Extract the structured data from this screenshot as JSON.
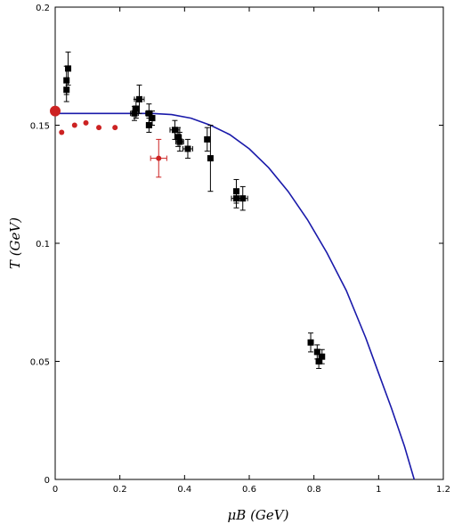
{
  "chart_data": {
    "type": "scatter",
    "title": "",
    "xlabel": "μB (GeV)",
    "ylabel": "T (GeV)",
    "xlim": [
      0,
      1.2
    ],
    "ylim": [
      0,
      0.2
    ],
    "x_ticks": [
      "0",
      "0.2",
      "0.4",
      "0.6",
      "0.8",
      "1",
      "1.2"
    ],
    "y_ticks": [
      "0",
      "0.05",
      "0.1",
      "0.15",
      "0.2"
    ],
    "grid": false,
    "series": [
      {
        "color": "#000000",
        "marker": "square",
        "points": [
          {
            "x": 0.035,
            "y": 0.169,
            "yerr": 0.006,
            "xerr": 0
          },
          {
            "x": 0.04,
            "y": 0.174,
            "yerr": 0.007,
            "xerr": 0
          },
          {
            "x": 0.035,
            "y": 0.165,
            "yerr": 0.005,
            "xerr": 0
          },
          {
            "x": 0.245,
            "y": 0.155,
            "yerr": 0.003,
            "xerr": 0.012
          },
          {
            "x": 0.25,
            "y": 0.157,
            "yerr": 0.004,
            "xerr": 0.01
          },
          {
            "x": 0.26,
            "y": 0.161,
            "yerr": 0.006,
            "xerr": 0.015
          },
          {
            "x": 0.29,
            "y": 0.155,
            "yerr": 0.004,
            "xerr": 0.01
          },
          {
            "x": 0.29,
            "y": 0.15,
            "yerr": 0.003,
            "xerr": 0.008
          },
          {
            "x": 0.3,
            "y": 0.153,
            "yerr": 0.003,
            "xerr": 0.008
          },
          {
            "x": 0.37,
            "y": 0.148,
            "yerr": 0.004,
            "xerr": 0.015
          },
          {
            "x": 0.38,
            "y": 0.145,
            "yerr": 0.004,
            "xerr": 0.01
          },
          {
            "x": 0.385,
            "y": 0.143,
            "yerr": 0.004,
            "xerr": 0.012
          },
          {
            "x": 0.41,
            "y": 0.14,
            "yerr": 0.004,
            "xerr": 0.015
          },
          {
            "x": 0.47,
            "y": 0.144,
            "yerr": 0.005,
            "xerr": 0.008
          },
          {
            "x": 0.48,
            "y": 0.136,
            "yerr": 0.014,
            "xerr": 0
          },
          {
            "x": 0.56,
            "y": 0.122,
            "yerr": 0.005,
            "xerr": 0.008
          },
          {
            "x": 0.56,
            "y": 0.119,
            "yerr": 0.004,
            "xerr": 0.015
          },
          {
            "x": 0.58,
            "y": 0.119,
            "yerr": 0.005,
            "xerr": 0.015
          },
          {
            "x": 0.79,
            "y": 0.058,
            "yerr": 0.004,
            "xerr": 0.005
          },
          {
            "x": 0.81,
            "y": 0.054,
            "yerr": 0.003,
            "xerr": 0.005
          },
          {
            "x": 0.815,
            "y": 0.05,
            "yerr": 0.003,
            "xerr": 0.008
          },
          {
            "x": 0.825,
            "y": 0.052,
            "yerr": 0.003,
            "xerr": 0.005
          }
        ]
      },
      {
        "color": "#cc2222",
        "marker": "circle",
        "points": [
          {
            "x": 0.0,
            "y": 0.156,
            "yerr": 0,
            "xerr": 0,
            "size": "large"
          },
          {
            "x": 0.02,
            "y": 0.147,
            "yerr": 0,
            "xerr": 0
          },
          {
            "x": 0.06,
            "y": 0.15,
            "yerr": 0,
            "xerr": 0
          },
          {
            "x": 0.095,
            "y": 0.151,
            "yerr": 0,
            "xerr": 0
          },
          {
            "x": 0.135,
            "y": 0.149,
            "yerr": 0,
            "xerr": 0
          },
          {
            "x": 0.185,
            "y": 0.149,
            "yerr": 0,
            "xerr": 0
          },
          {
            "x": 0.32,
            "y": 0.136,
            "yerr": 0.008,
            "xerr": 0.025
          }
        ]
      }
    ],
    "curve": {
      "color": "#1a1aaa",
      "type": "line",
      "points": [
        [
          0,
          0.155
        ],
        [
          0.1,
          0.155
        ],
        [
          0.2,
          0.155
        ],
        [
          0.3,
          0.155
        ],
        [
          0.36,
          0.1545
        ],
        [
          0.42,
          0.153
        ],
        [
          0.48,
          0.15
        ],
        [
          0.54,
          0.146
        ],
        [
          0.6,
          0.14
        ],
        [
          0.66,
          0.132
        ],
        [
          0.72,
          0.122
        ],
        [
          0.78,
          0.11
        ],
        [
          0.84,
          0.096
        ],
        [
          0.9,
          0.08
        ],
        [
          0.96,
          0.06
        ],
        [
          1.0,
          0.045
        ],
        [
          1.04,
          0.03
        ],
        [
          1.08,
          0.014
        ],
        [
          1.11,
          0.0
        ]
      ]
    }
  }
}
